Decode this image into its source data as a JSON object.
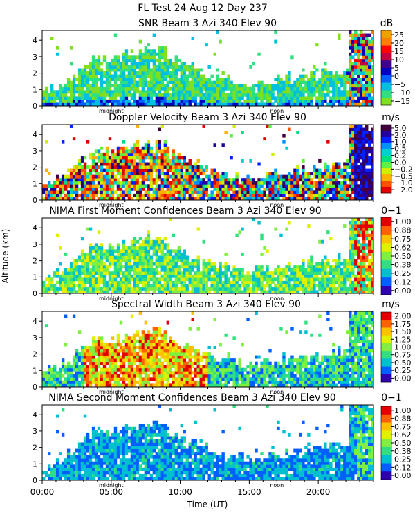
{
  "header": {
    "line1": "FL Test  24 Aug 12 Day 237"
  },
  "axes": {
    "ylabel": "Altitude (km)",
    "xlabel": "Time (UT)",
    "x_tick_labels": [
      "00:00",
      "05:00",
      "10:00",
      "15:00",
      "20:00"
    ],
    "x_tick_hours": [
      0,
      5,
      10,
      15,
      20
    ],
    "xlim_hours": [
      0,
      24
    ],
    "y_tick_labels": [
      "0",
      "1",
      "2",
      "3",
      "4"
    ],
    "ylim_km": [
      0,
      4.6
    ],
    "midnight_label": "midnight",
    "noon_label": "noon",
    "midnight_hour": 5,
    "noon_hour": 17
  },
  "panels": [
    {
      "title": "SNR Beam 3 Azi 340 Elev 90",
      "unit": "dB",
      "colorbar_labels": [
        "25",
        "20",
        "15",
        "10",
        "5",
        "0",
        "−5",
        "−10",
        "−15"
      ],
      "colors": [
        "#f0a000",
        "#ff8000",
        "#ff0000",
        "#c00040",
        "#400090",
        "#0000c0",
        "#0060ff",
        "#00c0e0",
        "#30e080",
        "#80e020"
      ]
    },
    {
      "title": "Doppler Velocity Beam 3 Azi 340 Elev 90",
      "unit": "m/s",
      "colorbar_labels": [
        "5.0",
        "2.0",
        "1.0",
        "0.5",
        "0.2",
        "0.0",
        "−0.2",
        "−0.5",
        "−1.0",
        "−2.0"
      ],
      "colors": [
        "#400040",
        "#2000a0",
        "#0020ff",
        "#0090ff",
        "#00d0d0",
        "#00e080",
        "#60f040",
        "#d0f000",
        "#ffb000",
        "#ff5000",
        "#e00000"
      ]
    },
    {
      "title": "NIMA First Moment Confidences Beam 3 Azi 340 Elev 90",
      "unit": "0−1",
      "colorbar_labels": [
        "1.00",
        "0.88",
        "0.75",
        "0.62",
        "0.50",
        "0.38",
        "0.25",
        "0.12",
        "0.00"
      ],
      "colors": [
        "#e00000",
        "#ff6000",
        "#ffc000",
        "#e0f000",
        "#80f040",
        "#30e080",
        "#00c0d0",
        "#0060ff",
        "#3000b0"
      ]
    },
    {
      "title": "Spectral Width Beam 3 Azi 340 Elev 90",
      "unit": "m/s",
      "colorbar_labels": [
        "2.00",
        "1.75",
        "1.50",
        "1.25",
        "1.00",
        "0.75",
        "0.50",
        "0.25",
        "0.00"
      ],
      "colors": [
        "#e00000",
        "#ff6000",
        "#ffc000",
        "#e0f000",
        "#80f040",
        "#30e080",
        "#00c0d0",
        "#0060ff",
        "#3000b0"
      ]
    },
    {
      "title": "NIMA Second Moment Confidences Beam 3 Azi 340 Elev 90",
      "unit": "0−1",
      "colorbar_labels": [
        "1.00",
        "0.88",
        "0.75",
        "0.62",
        "0.50",
        "0.38",
        "0.25",
        "0.12",
        "0.00"
      ],
      "colors": [
        "#e00000",
        "#ff6000",
        "#ffc000",
        "#e0f000",
        "#80f040",
        "#30e080",
        "#00c0d0",
        "#0060ff",
        "#3000b0"
      ]
    }
  ],
  "chart_data": {
    "type": "heatmap",
    "title": "FL Test  24 Aug 12 Day 237",
    "xlabel": "Time (UT)",
    "ylabel": "Altitude (km)",
    "x_range_hours": [
      0,
      24
    ],
    "y_range_km": [
      0,
      4.6
    ],
    "grid": false,
    "series": [
      {
        "name": "SNR Beam 3 Azi 340 Elev 90",
        "unit": "dB",
        "color_scale": [
          -15,
          25
        ],
        "approx_echo_top_km": [
          {
            "hour": 0,
            "top": 1.0
          },
          {
            "hour": 3,
            "top": 2.5
          },
          {
            "hour": 6,
            "top": 3.4
          },
          {
            "hour": 9,
            "top": 3.0
          },
          {
            "hour": 12,
            "top": 2.0
          },
          {
            "hour": 15,
            "top": 1.2
          },
          {
            "hour": 18,
            "top": 1.6
          },
          {
            "hour": 21,
            "top": 2.2
          },
          {
            "hour": 23,
            "top": 4.6
          }
        ]
      },
      {
        "name": "Doppler Velocity Beam 3 Azi 340 Elev 90",
        "unit": "m/s",
        "color_scale": [
          -2.0,
          5.0
        ]
      },
      {
        "name": "NIMA First Moment Confidences Beam 3 Azi 340 Elev 90",
        "unit": "0−1",
        "color_scale": [
          0,
          1
        ]
      },
      {
        "name": "Spectral Width Beam 3 Azi 340 Elev 90",
        "unit": "m/s",
        "color_scale": [
          0,
          2
        ]
      },
      {
        "name": "NIMA Second Moment Confidences Beam 3 Azi 340 Elev 90",
        "unit": "0−1",
        "color_scale": [
          0,
          1
        ]
      }
    ]
  }
}
